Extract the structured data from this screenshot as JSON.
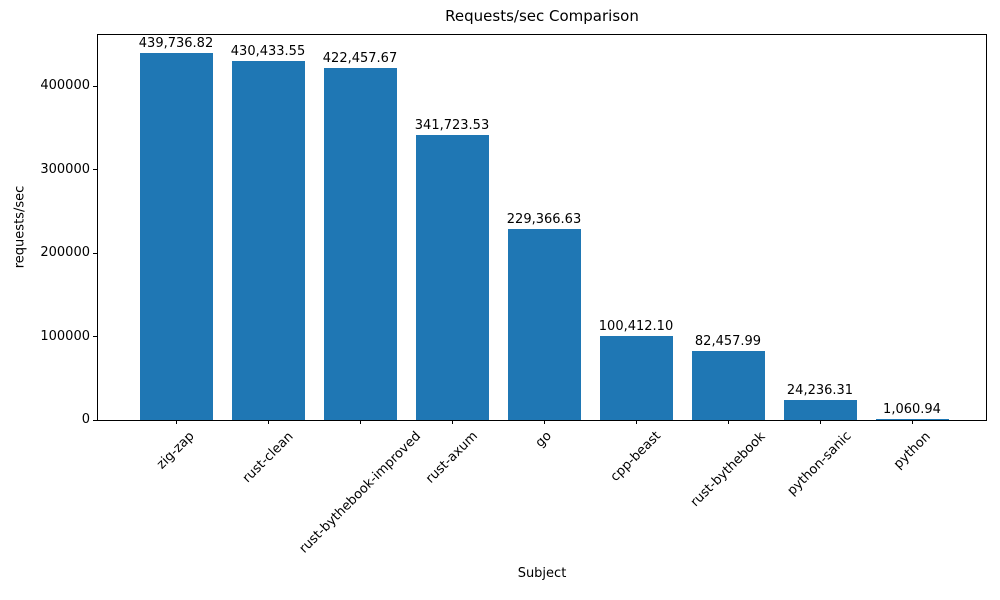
{
  "chart_data": {
    "type": "bar",
    "title": "Requests/sec Comparison",
    "xlabel": "Subject",
    "ylabel": "requests/sec",
    "categories": [
      "zig-zap",
      "rust-clean",
      "rust-bythebook-improved",
      "rust-axum",
      "go",
      "cpp-beast",
      "rust-bythebook",
      "python-sanic",
      "python"
    ],
    "values": [
      439736.82,
      430433.55,
      422457.67,
      341723.53,
      229366.63,
      100412.1,
      82457.99,
      24236.31,
      1060.94
    ],
    "value_labels": [
      "439,736.82",
      "430,433.55",
      "422,457.67",
      "341,723.53",
      "229,366.63",
      "100,412.10",
      "82,457.99",
      "24,236.31",
      "1,060.94"
    ],
    "bar_color": "#1f77b4",
    "text_color": "#000000",
    "background_color": "#ffffff",
    "ylim": [
      0,
      461724
    ],
    "yticks": [
      0,
      100000,
      200000,
      300000,
      400000
    ],
    "ytick_labels": [
      "0",
      "100000",
      "200000",
      "300000",
      "400000"
    ],
    "x_tick_rotation_deg": 45,
    "grid": false,
    "legend": false
  }
}
